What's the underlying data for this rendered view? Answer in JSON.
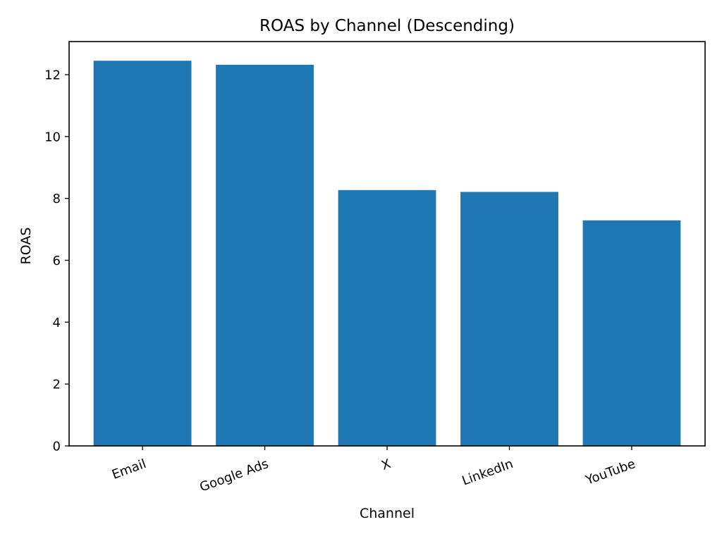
{
  "chart_data": {
    "type": "bar",
    "title": "ROAS by Channel (Descending)",
    "xlabel": "Channel",
    "ylabel": "ROAS",
    "categories": [
      "Email",
      "Google Ads",
      "X",
      "LinkedIn",
      "YouTube"
    ],
    "values": [
      12.45,
      12.32,
      8.27,
      8.21,
      7.29
    ],
    "ylim": [
      0,
      13.07
    ],
    "yticks": [
      0,
      2,
      4,
      6,
      8,
      10,
      12
    ],
    "x_tick_rotation": -20,
    "bar_color": "#1f77b4",
    "grid": false,
    "legend": "none"
  }
}
